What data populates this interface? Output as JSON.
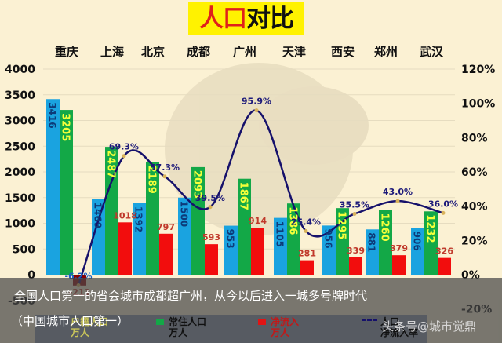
{
  "title": {
    "part1": "人口",
    "part2": "对比"
  },
  "colors": {
    "household": "#1aa3e0",
    "resident": "#13a847",
    "net_inflow": "#f20d0d",
    "net_inflow_negative": "#8b0000",
    "rate_line": "#16116b",
    "household_label": "#0d3b7a",
    "resident_label": "#f4ff3a",
    "net_label": "#c0392b",
    "rate_label": "#1d1a7a",
    "background": "#fbf1d3",
    "title_bg": "#fff200"
  },
  "chart_data": {
    "type": "bar",
    "title": "人口对比",
    "categories": [
      "重庆",
      "上海",
      "北京",
      "成都",
      "广州",
      "天津",
      "西安",
      "郑州",
      "武汉"
    ],
    "series": [
      {
        "name": "户籍人口 万人",
        "type": "bar",
        "axis": "left",
        "values": [
          3416,
          1469,
          1392,
          1500,
          953,
          1105,
          956,
          881,
          906
        ]
      },
      {
        "name": "常住人口 万人",
        "type": "bar",
        "axis": "left",
        "values": [
          3205,
          2487,
          2189,
          2093,
          1867,
          1386,
          1295,
          1260,
          1232
        ]
      },
      {
        "name": "净流入 万人",
        "type": "bar",
        "axis": "left",
        "values": [
          -211,
          1018,
          797,
          593,
          914,
          281,
          339,
          379,
          326
        ]
      },
      {
        "name": "人口净流入率",
        "type": "line",
        "axis": "right",
        "values": [
          -6.2,
          69.3,
          57.3,
          39.5,
          95.9,
          25.4,
          35.5,
          43.0,
          36.0
        ],
        "labels": [
          "-6.2%",
          "69.3%",
          "57.3%",
          "39.5%",
          "95.9%",
          "25.4%",
          "35.5%",
          "43.0%",
          "36.0%"
        ]
      }
    ],
    "y_left": {
      "ticks": [
        -500,
        0,
        500,
        1000,
        1500,
        2000,
        2500,
        3000,
        3500,
        4000
      ],
      "range": [
        -500,
        4000
      ]
    },
    "y_right": {
      "ticks": [
        "0%",
        "20%",
        "40%",
        "60%",
        "80%",
        "100%",
        "120%"
      ],
      "range": [
        -20,
        120
      ],
      "bottom_label": "-20%"
    },
    "grid": true,
    "legend_position": "bottom"
  },
  "legend": [
    {
      "line1": "户籍人口",
      "line2": "万人",
      "kind": "household"
    },
    {
      "line1": "常住人口",
      "line2": "万人",
      "kind": "resident"
    },
    {
      "line1": "净流入",
      "line2": "万人",
      "kind": "net_inflow"
    },
    {
      "line1": "人口",
      "line2": "净流入率",
      "kind": "rate"
    }
  ],
  "caption": {
    "line1": "全国人口第一的省会城市成都超广州，从今以后进入一城多号牌时代",
    "line2": "（中国城市人口第一）"
  },
  "watermark": "头条号@城市觉鼎"
}
